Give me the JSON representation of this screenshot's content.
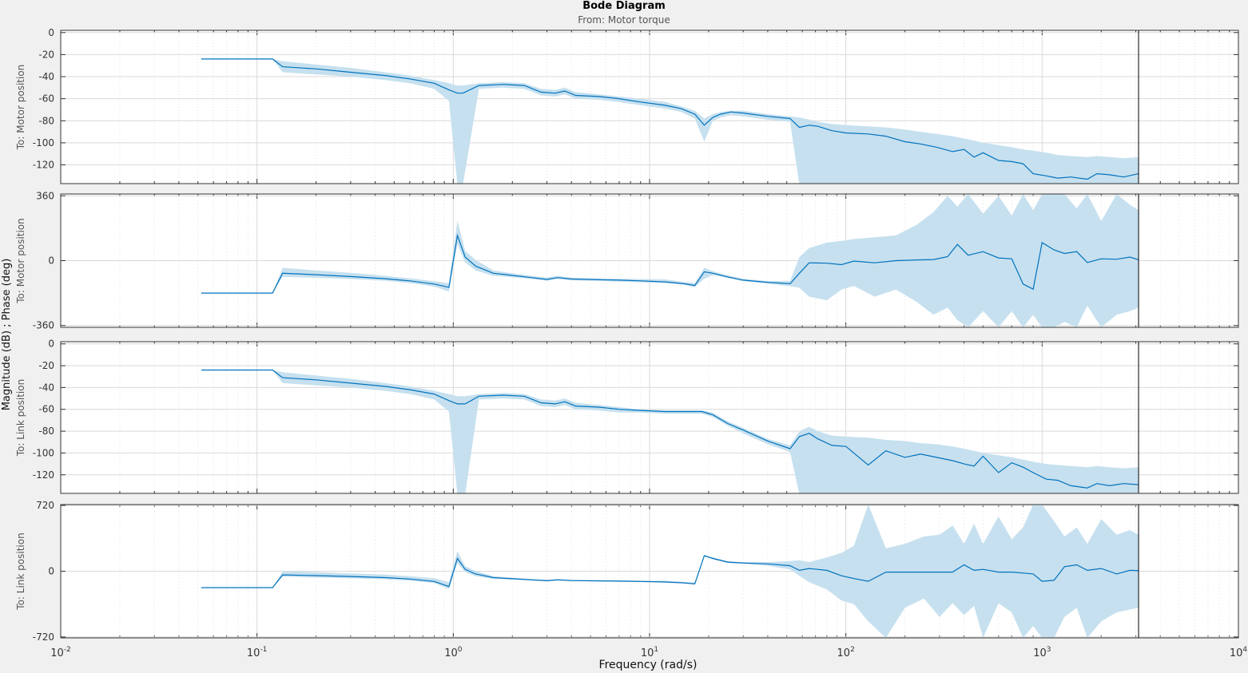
{
  "figure": {
    "title": "Bode Diagram",
    "subtitle": "From: Motor torque",
    "xlabel": "Frequency  (rad/s)",
    "ylabel": "Magnitude (dB) ; Phase (deg)",
    "colors": {
      "line": "#0072bd",
      "band": "#c6e0ef",
      "grid": "#d9d9d9",
      "background": "#ffffff"
    }
  },
  "chart_data": [
    {
      "type": "line",
      "ylabel": "To: Motor position",
      "quantity": "magnitude_db",
      "xscale": "log",
      "xlim": [
        0.01,
        10000
      ],
      "ylim": [
        -137,
        2
      ],
      "yticks": [
        0,
        -20,
        -40,
        -60,
        -80,
        -100,
        -120
      ],
      "xticks": [
        "10-2",
        "10-1",
        "100",
        "101",
        "102",
        "103",
        "104"
      ],
      "series": [
        {
          "x": [
            0.052,
            0.12,
            0.135,
            0.2,
            0.3,
            0.45,
            0.6,
            0.8,
            0.95,
            1.05,
            1.12,
            1.35,
            1.8,
            2.3,
            2.8,
            3.3,
            3.7,
            4.2,
            5.5,
            7,
            9,
            12,
            14.5,
            17,
            19,
            21,
            23,
            26,
            30,
            40,
            52,
            58,
            65,
            72,
            85,
            100,
            130,
            160,
            200,
            240,
            290,
            350,
            400,
            450,
            500,
            600,
            700,
            800,
            900,
            1050,
            1200,
            1400,
            1700,
            1900,
            2200,
            2600,
            3100
          ],
          "y": [
            -24,
            -24,
            -31,
            -33,
            -36,
            -39,
            -42,
            -46,
            -52,
            -55,
            -55,
            -48,
            -47,
            -48,
            -54,
            -55,
            -53,
            -57,
            -58,
            -60,
            -63,
            -66,
            -69,
            -74,
            -84,
            -77,
            -74,
            -72,
            -73,
            -76,
            -78,
            -86,
            -84,
            -85,
            -89,
            -91,
            -92,
            -94,
            -99,
            -101,
            -104,
            -108,
            -106,
            -113,
            -109,
            -116,
            -117,
            -119,
            -128,
            -130,
            -132,
            -131,
            -133,
            -128,
            -129,
            -131,
            -128
          ],
          "lower": [
            -24,
            -24,
            -36,
            -38,
            -40,
            -43,
            -46,
            -51,
            -62,
            -138,
            -138,
            -51,
            -50,
            -51,
            -57,
            -58,
            -56,
            -60,
            -61,
            -63,
            -66,
            -69,
            -72,
            -78,
            -99,
            -80,
            -77,
            -75,
            -76,
            -79,
            -81,
            -138,
            -138,
            -138,
            -138,
            -138,
            -138,
            -138,
            -138,
            -138,
            -138,
            -138,
            -138,
            -138,
            -138,
            -138,
            -138,
            -138,
            -138,
            -138,
            -138,
            -138,
            -138,
            -138,
            -138,
            -138,
            -138
          ],
          "upper": [
            -24,
            -24,
            -26,
            -29,
            -32,
            -36,
            -39,
            -43,
            -46,
            -48,
            -48,
            -46,
            -45,
            -46,
            -51,
            -52,
            -50,
            -54,
            -56,
            -58,
            -60,
            -63,
            -67,
            -71,
            -78,
            -74,
            -72,
            -71,
            -71,
            -74,
            -76,
            -77,
            -79,
            -81,
            -83,
            -84,
            -85,
            -86,
            -88,
            -90,
            -92,
            -94,
            -96,
            -98,
            -100,
            -102,
            -104,
            -106,
            -107,
            -109,
            -111,
            -112,
            -113,
            -112,
            -113,
            -114,
            -113
          ]
        }
      ]
    },
    {
      "type": "line",
      "ylabel": "To: Motor position",
      "quantity": "phase_deg",
      "xscale": "log",
      "xlim": [
        0.01,
        10000
      ],
      "ylim": [
        -370,
        370
      ],
      "yticks": [
        360,
        0,
        -360
      ],
      "xticks": [
        "10-2",
        "10-1",
        "100",
        "101",
        "102",
        "103",
        "104"
      ],
      "series": [
        {
          "x": [
            0.052,
            0.12,
            0.135,
            0.2,
            0.3,
            0.45,
            0.6,
            0.8,
            0.95,
            1.05,
            1.15,
            1.3,
            1.6,
            2,
            2.5,
            3,
            3.4,
            4,
            5.5,
            7,
            9,
            12,
            15,
            17,
            19,
            21,
            25,
            30,
            40,
            52,
            58,
            65,
            80,
            95,
            110,
            140,
            180,
            230,
            280,
            330,
            370,
            420,
            500,
            600,
            700,
            800,
            900,
            1000,
            1150,
            1300,
            1500,
            1700,
            2000,
            2400,
            2800,
            3100
          ],
          "y": [
            -180,
            -180,
            -70,
            -78,
            -88,
            -100,
            -112,
            -130,
            -148,
            140,
            20,
            -30,
            -70,
            -82,
            -94,
            -104,
            -94,
            -102,
            -106,
            -108,
            -112,
            -118,
            -128,
            -138,
            -62,
            -70,
            -90,
            -108,
            -120,
            -128,
            -70,
            -12,
            -14,
            -22,
            -2,
            -12,
            0,
            4,
            6,
            22,
            90,
            30,
            50,
            15,
            10,
            -130,
            -158,
            100,
            60,
            40,
            50,
            -10,
            10,
            8,
            20,
            5
          ],
          "lower": [
            -180,
            -180,
            -90,
            -95,
            -102,
            -112,
            -124,
            -144,
            -172,
            92,
            -10,
            -54,
            -84,
            -92,
            -102,
            -112,
            -102,
            -110,
            -112,
            -116,
            -120,
            -124,
            -134,
            -148,
            -100,
            -80,
            -96,
            -114,
            -128,
            -142,
            -150,
            -200,
            -220,
            -160,
            -140,
            -200,
            -160,
            -230,
            -300,
            -260,
            -330,
            -370,
            -280,
            -370,
            -280,
            -370,
            -300,
            -370,
            -370,
            -340,
            -370,
            -250,
            -370,
            -300,
            -280,
            -260
          ],
          "upper": [
            -180,
            -180,
            -40,
            -54,
            -68,
            -84,
            -98,
            -114,
            -125,
            222,
            54,
            4,
            -54,
            -70,
            -84,
            -94,
            -84,
            -94,
            -98,
            -100,
            -102,
            -104,
            -118,
            -124,
            -40,
            -58,
            -82,
            -100,
            -114,
            -112,
            20,
            70,
            100,
            110,
            120,
            130,
            140,
            200,
            270,
            360,
            300,
            370,
            260,
            360,
            250,
            370,
            280,
            370,
            370,
            370,
            290,
            370,
            220,
            370,
            310,
            280
          ]
        }
      ]
    },
    {
      "type": "line",
      "ylabel": "To: Link position",
      "quantity": "magnitude_db",
      "xscale": "log",
      "xlim": [
        0.01,
        10000
      ],
      "ylim": [
        -137,
        2
      ],
      "yticks": [
        0,
        -20,
        -40,
        -60,
        -80,
        -100,
        -120
      ],
      "xticks": [
        "10-2",
        "10-1",
        "100",
        "101",
        "102",
        "103",
        "104"
      ],
      "series": [
        {
          "x": [
            0.052,
            0.12,
            0.135,
            0.2,
            0.3,
            0.45,
            0.6,
            0.8,
            0.95,
            1.05,
            1.15,
            1.35,
            1.8,
            2.3,
            2.8,
            3.3,
            3.7,
            4.2,
            5.5,
            7,
            9,
            12,
            15,
            18.5,
            21,
            25,
            30,
            40,
            52,
            58,
            65,
            72,
            85,
            100,
            130,
            160,
            200,
            240,
            290,
            350,
            400,
            450,
            500,
            600,
            700,
            800,
            900,
            1050,
            1200,
            1400,
            1700,
            1900,
            2200,
            2600,
            3100
          ],
          "y": [
            -24,
            -24,
            -31,
            -33,
            -36,
            -39,
            -42,
            -46,
            -52,
            -55,
            -55,
            -48,
            -47,
            -48,
            -54,
            -55,
            -53,
            -57,
            -58,
            -60,
            -61,
            -62,
            -62,
            -62,
            -65,
            -73,
            -79,
            -89,
            -96,
            -85,
            -82,
            -87,
            -93,
            -94,
            -111,
            -98,
            -104,
            -101,
            -104,
            -107,
            -110,
            -112,
            -103,
            -118,
            -109,
            -113,
            -118,
            -124,
            -125,
            -130,
            -132,
            -128,
            -130,
            -128,
            -129
          ],
          "lower": [
            -24,
            -24,
            -36,
            -38,
            -40,
            -43,
            -46,
            -51,
            -62,
            -138,
            -138,
            -51,
            -50,
            -51,
            -57,
            -58,
            -56,
            -60,
            -61,
            -63,
            -63,
            -64,
            -64,
            -64,
            -67,
            -75,
            -82,
            -92,
            -99,
            -138,
            -138,
            -138,
            -138,
            -138,
            -138,
            -138,
            -138,
            -138,
            -138,
            -138,
            -138,
            -138,
            -138,
            -138,
            -138,
            -138,
            -138,
            -138,
            -138,
            -138,
            -138,
            -138,
            -138,
            -138,
            -138
          ],
          "upper": [
            -24,
            -24,
            -26,
            -29,
            -32,
            -36,
            -39,
            -43,
            -46,
            -48,
            -48,
            -46,
            -45,
            -46,
            -51,
            -52,
            -50,
            -54,
            -56,
            -58,
            -60,
            -61,
            -61,
            -61,
            -63,
            -71,
            -77,
            -87,
            -93,
            -80,
            -76,
            -80,
            -84,
            -85,
            -86,
            -88,
            -89,
            -91,
            -92,
            -94,
            -96,
            -98,
            -100,
            -102,
            -104,
            -106,
            -108,
            -110,
            -111,
            -112,
            -113,
            -112,
            -113,
            -114,
            -113
          ]
        }
      ]
    },
    {
      "type": "line",
      "ylabel": "To: Link position",
      "quantity": "phase_deg",
      "xscale": "log",
      "xlim": [
        0.01,
        10000
      ],
      "ylim": [
        -730,
        730
      ],
      "yticks": [
        720,
        0,
        -720
      ],
      "xticks": [
        "10-2",
        "10-1",
        "100",
        "101",
        "102",
        "103",
        "104"
      ],
      "series": [
        {
          "x": [
            0.052,
            0.12,
            0.135,
            0.2,
            0.3,
            0.45,
            0.6,
            0.8,
            0.95,
            1.05,
            1.15,
            1.3,
            1.6,
            2,
            2.5,
            3,
            3.4,
            4,
            5.5,
            7,
            9,
            12,
            15,
            17,
            19,
            21,
            25,
            30,
            40,
            52,
            58,
            65,
            80,
            95,
            110,
            130,
            160,
            200,
            250,
            300,
            350,
            400,
            450,
            500,
            600,
            700,
            800,
            900,
            1000,
            1150,
            1300,
            1500,
            1700,
            2000,
            2400,
            2800,
            3100
          ],
          "y": [
            -180,
            -180,
            -40,
            -48,
            -58,
            -70,
            -86,
            -112,
            -168,
            140,
            20,
            -30,
            -70,
            -82,
            -94,
            -104,
            -94,
            -102,
            -106,
            -108,
            -112,
            -118,
            -128,
            -138,
            170,
            140,
            100,
            90,
            80,
            60,
            10,
            30,
            10,
            -50,
            -80,
            -110,
            -10,
            -10,
            -10,
            -10,
            -10,
            70,
            10,
            20,
            -10,
            -10,
            -20,
            -30,
            -110,
            -100,
            50,
            70,
            10,
            30,
            -30,
            10,
            5
          ],
          "lower": [
            -180,
            -180,
            -60,
            -70,
            -78,
            -88,
            -104,
            -130,
            -195,
            92,
            -10,
            -54,
            -84,
            -92,
            -102,
            -112,
            -102,
            -110,
            -112,
            -116,
            -120,
            -124,
            -134,
            -148,
            160,
            130,
            90,
            80,
            60,
            20,
            -50,
            -120,
            -200,
            -320,
            -360,
            -550,
            -730,
            -400,
            -300,
            -500,
            -350,
            -480,
            -380,
            -730,
            -350,
            -450,
            -730,
            -600,
            -730,
            -730,
            -500,
            -400,
            -730,
            -550,
            -450,
            -420,
            -400
          ],
          "upper": [
            -180,
            -180,
            0,
            -10,
            -24,
            -38,
            -54,
            -76,
            -120,
            222,
            54,
            4,
            -54,
            -70,
            -84,
            -94,
            -84,
            -94,
            -98,
            -100,
            -102,
            -104,
            -118,
            -124,
            180,
            150,
            110,
            100,
            100,
            110,
            120,
            100,
            150,
            200,
            280,
            730,
            250,
            300,
            380,
            400,
            500,
            300,
            520,
            300,
            600,
            350,
            480,
            730,
            730,
            550,
            380,
            480,
            300,
            570,
            400,
            450,
            400
          ]
        }
      ]
    }
  ]
}
